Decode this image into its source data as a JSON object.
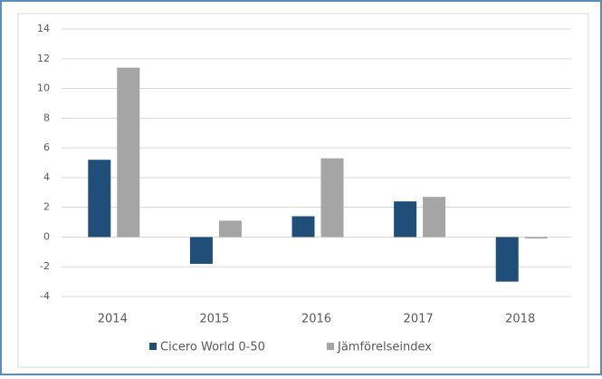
{
  "chart_data": {
    "type": "bar",
    "categories": [
      "2014",
      "2015",
      "2016",
      "2017",
      "2018"
    ],
    "series": [
      {
        "name": "Cicero World 0-50",
        "color": "#1f4e79",
        "values": [
          5.2,
          -1.8,
          1.4,
          2.4,
          -3.0
        ]
      },
      {
        "name": "Jämförelseindex",
        "color": "#a5a5a5",
        "values": [
          11.4,
          1.1,
          5.3,
          2.7,
          -0.1
        ]
      }
    ],
    "ylim": [
      -4,
      14
    ],
    "yticks": [
      -4,
      -2,
      0,
      2,
      4,
      6,
      8,
      10,
      12,
      14
    ],
    "grid": true,
    "legend": "bottom"
  }
}
